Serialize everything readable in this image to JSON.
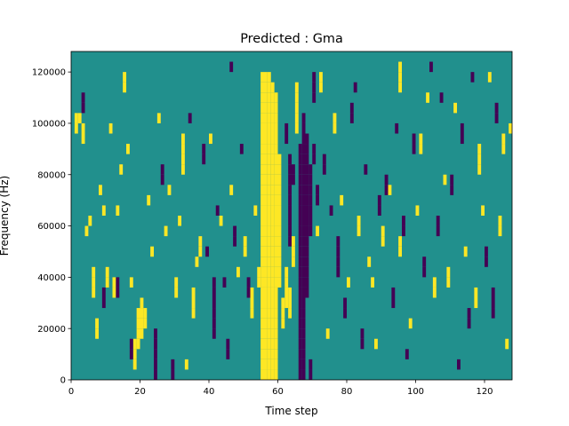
{
  "chart_data": {
    "type": "heatmap",
    "title": "Predicted : Gma",
    "xlabel": "Time step",
    "ylabel": "Frequency (Hz)",
    "xlim": [
      0,
      128
    ],
    "ylim": [
      0,
      128000
    ],
    "x_ticks": [
      {
        "value": 0,
        "label": "0"
      },
      {
        "value": 20,
        "label": "20"
      },
      {
        "value": 40,
        "label": "40"
      },
      {
        "value": 60,
        "label": "60"
      },
      {
        "value": 80,
        "label": "80"
      },
      {
        "value": 100,
        "label": "100"
      },
      {
        "value": 120,
        "label": "120"
      }
    ],
    "y_ticks": [
      {
        "value": 0,
        "label": "0"
      },
      {
        "value": 20000,
        "label": "20000"
      },
      {
        "value": 40000,
        "label": "40000"
      },
      {
        "value": 60000,
        "label": "60000"
      },
      {
        "value": 80000,
        "label": "80000"
      },
      {
        "value": 100000,
        "label": "100000"
      },
      {
        "value": 120000,
        "label": "120000"
      }
    ],
    "frequency_bins": 32,
    "bin_width_hz": 4000,
    "value_levels": [
      -1,
      0,
      1
    ],
    "colormap": {
      "-1": "#440154",
      "0": "#21908d",
      "1": "#fde725"
    },
    "background_value": 0,
    "cells": [
      {
        "t": 55,
        "f": [
          0,
          1,
          2,
          3,
          4,
          5,
          6,
          7,
          8,
          9,
          10,
          11,
          12,
          13,
          14,
          15,
          16,
          17,
          18,
          19,
          20,
          21,
          22,
          23,
          24,
          25,
          26,
          27,
          28,
          29
        ],
        "v": 1
      },
      {
        "t": 56,
        "f": [
          0,
          1,
          2,
          3,
          4,
          5,
          6,
          7,
          8,
          9,
          10,
          11,
          12,
          13,
          14,
          15,
          16,
          17,
          18,
          19,
          20,
          21,
          22,
          23,
          24,
          25,
          26,
          27,
          28,
          29
        ],
        "v": 1
      },
      {
        "t": 57,
        "f": [
          0,
          1,
          2,
          3,
          4,
          5,
          6,
          7,
          8,
          9,
          10,
          11,
          12,
          13,
          14,
          15,
          16,
          17,
          18,
          19,
          20,
          21,
          22,
          23,
          24,
          25,
          26,
          27,
          28,
          29
        ],
        "v": 1
      },
      {
        "t": 58,
        "f": [
          0,
          1,
          2,
          3,
          4,
          5,
          6,
          7,
          8,
          9,
          10,
          11,
          12,
          13,
          14,
          15,
          16,
          17,
          18,
          19,
          20,
          21,
          22,
          23,
          24,
          25,
          26,
          27,
          28
        ],
        "v": 1
      },
      {
        "t": 59,
        "f": [
          0,
          1,
          2,
          3,
          4,
          5,
          6,
          7,
          8,
          9,
          10,
          11,
          12,
          13,
          14,
          15,
          16,
          17,
          18,
          19,
          20,
          21,
          22,
          23,
          24,
          25
        ],
        "v": 1
      },
      {
        "t": 60,
        "f": [
          9,
          10,
          11,
          12,
          13,
          14,
          15,
          16,
          17,
          18,
          19,
          20,
          21
        ],
        "v": 1
      },
      {
        "t": 61,
        "f": [
          5,
          6,
          7
        ],
        "v": 1
      },
      {
        "t": 62,
        "f": [
          7,
          8,
          9,
          10
        ],
        "v": 1
      },
      {
        "t": 63,
        "f": [
          6,
          7,
          8
        ],
        "v": 1
      },
      {
        "t": 64,
        "f": [
          11,
          12,
          13
        ],
        "v": 1
      },
      {
        "t": 65,
        "f": [
          24,
          25,
          26,
          27,
          28
        ],
        "v": 1
      },
      {
        "t": 66,
        "f": [
          0,
          1,
          2,
          3,
          4,
          5,
          6,
          7,
          8,
          9,
          10,
          11,
          12,
          13,
          14,
          15,
          16,
          17,
          18,
          19,
          20,
          21,
          22
        ],
        "v": -1
      },
      {
        "t": 67,
        "f": [
          0,
          1,
          2,
          3,
          4,
          5,
          6,
          7,
          8,
          9,
          10,
          11,
          12,
          13,
          14,
          15,
          16,
          17,
          18,
          19,
          20,
          21,
          22,
          23,
          24,
          25
        ],
        "v": -1
      },
      {
        "t": 68,
        "f": [
          8,
          9,
          10,
          11,
          12,
          13,
          14,
          15,
          16,
          17,
          18,
          19,
          20,
          21,
          22,
          23
        ],
        "v": -1
      },
      {
        "t": 69,
        "f": [
          14,
          15,
          16,
          17,
          18,
          19,
          20
        ],
        "v": -1
      },
      {
        "t": 63,
        "f": [
          13,
          14,
          15,
          16,
          17,
          18,
          19,
          20,
          21
        ],
        "v": -1
      },
      {
        "t": 64,
        "f": [
          19,
          20
        ],
        "v": -1
      },
      {
        "t": 62,
        "f": [
          23,
          24
        ],
        "v": -1
      },
      {
        "t": 70,
        "f": [
          27,
          28,
          29
        ],
        "v": -1
      },
      {
        "t": 6,
        "f": [
          8,
          9,
          10
        ],
        "v": 1
      },
      {
        "t": 7,
        "f": [
          4,
          5
        ],
        "v": 1
      },
      {
        "t": 10,
        "f": [
          9,
          10
        ],
        "v": 1
      },
      {
        "t": 12,
        "f": [
          8,
          9
        ],
        "v": 1
      },
      {
        "t": 18,
        "f": [
          1,
          2,
          3
        ],
        "v": 1
      },
      {
        "t": 19,
        "f": [
          3,
          4,
          5,
          6
        ],
        "v": 1
      },
      {
        "t": 20,
        "f": [
          4,
          5,
          6,
          7
        ],
        "v": 1
      },
      {
        "t": 21,
        "f": [
          5,
          6
        ],
        "v": 1
      },
      {
        "t": 30,
        "f": [
          8,
          9
        ],
        "v": 1
      },
      {
        "t": 32,
        "f": [
          20,
          21,
          22,
          23
        ],
        "v": 1
      },
      {
        "t": 35,
        "f": [
          6,
          7,
          8
        ],
        "v": 1
      },
      {
        "t": 37,
        "f": [
          12,
          13
        ],
        "v": 1
      },
      {
        "t": 50,
        "f": [
          12,
          13
        ],
        "v": 1
      },
      {
        "t": 52,
        "f": [
          6,
          7,
          8
        ],
        "v": 1
      },
      {
        "t": 54,
        "f": [
          9,
          10
        ],
        "v": 1
      },
      {
        "t": 72,
        "f": [
          28,
          29
        ],
        "v": 1
      },
      {
        "t": 76,
        "f": [
          24,
          25
        ],
        "v": 1
      },
      {
        "t": 83,
        "f": [
          14,
          15
        ],
        "v": 1
      },
      {
        "t": 90,
        "f": [
          13,
          14
        ],
        "v": 1
      },
      {
        "t": 95,
        "f": [
          12,
          13
        ],
        "v": 1
      },
      {
        "t": 105,
        "f": [
          8,
          9
        ],
        "v": 1
      },
      {
        "t": 109,
        "f": [
          9,
          10
        ],
        "v": 1
      },
      {
        "t": 117,
        "f": [
          7,
          8
        ],
        "v": 1
      },
      {
        "t": 118,
        "f": [
          20,
          21,
          22
        ],
        "v": 1
      },
      {
        "t": 124,
        "f": [
          14,
          15
        ],
        "v": 1
      },
      {
        "t": 125,
        "f": [
          22,
          23
        ],
        "v": 1
      },
      {
        "t": 95,
        "f": [
          28,
          29,
          30
        ],
        "v": 1
      },
      {
        "t": 101,
        "f": [
          22,
          23
        ],
        "v": 1
      },
      {
        "t": 15,
        "f": [
          28,
          29
        ],
        "v": 1
      },
      {
        "t": 2,
        "f": [
          25
        ],
        "v": 1
      },
      {
        "t": 3,
        "f": [
          23,
          24
        ],
        "v": 1
      },
      {
        "t": 4,
        "f": [
          14
        ],
        "v": 1
      },
      {
        "t": 5,
        "f": [
          15
        ],
        "v": 1
      },
      {
        "t": 8,
        "f": [
          18
        ],
        "v": 1
      },
      {
        "t": 9,
        "f": [
          16
        ],
        "v": 1
      },
      {
        "t": 11,
        "f": [
          24
        ],
        "v": 1
      },
      {
        "t": 13,
        "f": [
          16
        ],
        "v": 1
      },
      {
        "t": 14,
        "f": [
          20
        ],
        "v": 1
      },
      {
        "t": 16,
        "f": [
          22
        ],
        "v": 1
      },
      {
        "t": 17,
        "f": [
          9
        ],
        "v": 1
      },
      {
        "t": 22,
        "f": [
          17
        ],
        "v": 1
      },
      {
        "t": 23,
        "f": [
          12
        ],
        "v": 1
      },
      {
        "t": 25,
        "f": [
          25
        ],
        "v": 1
      },
      {
        "t": 27,
        "f": [
          14
        ],
        "v": 1
      },
      {
        "t": 28,
        "f": [
          18
        ],
        "v": 1
      },
      {
        "t": 31,
        "f": [
          15
        ],
        "v": 1
      },
      {
        "t": 33,
        "f": [
          1
        ],
        "v": 1
      },
      {
        "t": 36,
        "f": [
          11
        ],
        "v": 1
      },
      {
        "t": 40,
        "f": [
          23
        ],
        "v": 1
      },
      {
        "t": 43,
        "f": [
          15
        ],
        "v": 1
      },
      {
        "t": 46,
        "f": [
          18
        ],
        "v": 1
      },
      {
        "t": 48,
        "f": [
          10
        ],
        "v": 1
      },
      {
        "t": 53,
        "f": [
          16
        ],
        "v": 1
      },
      {
        "t": 71,
        "f": [
          14
        ],
        "v": 1
      },
      {
        "t": 74,
        "f": [
          4
        ],
        "v": 1
      },
      {
        "t": 78,
        "f": [
          17
        ],
        "v": 1
      },
      {
        "t": 80,
        "f": [
          9
        ],
        "v": 1
      },
      {
        "t": 86,
        "f": [
          11
        ],
        "v": 1
      },
      {
        "t": 88,
        "f": [
          3
        ],
        "v": 1
      },
      {
        "t": 92,
        "f": [
          18
        ],
        "v": 1
      },
      {
        "t": 98,
        "f": [
          5
        ],
        "v": 1
      },
      {
        "t": 100,
        "f": [
          16
        ],
        "v": 1
      },
      {
        "t": 103,
        "f": [
          27
        ],
        "v": 1
      },
      {
        "t": 108,
        "f": [
          19
        ],
        "v": 1
      },
      {
        "t": 111,
        "f": [
          26
        ],
        "v": 1
      },
      {
        "t": 114,
        "f": [
          12
        ],
        "v": 1
      },
      {
        "t": 119,
        "f": [
          16
        ],
        "v": 1
      },
      {
        "t": 121,
        "f": [
          29
        ],
        "v": 1
      },
      {
        "t": 126,
        "f": [
          3
        ],
        "v": 1
      },
      {
        "t": 127,
        "f": [
          24
        ],
        "v": 1
      },
      {
        "t": 1,
        "f": [
          24,
          25
        ],
        "v": 1
      },
      {
        "t": 87,
        "f": [
          9
        ],
        "v": 1
      },
      {
        "t": 59,
        "f": [
          26,
          27
        ],
        "v": 1
      },
      {
        "t": 3,
        "f": [
          26,
          27
        ],
        "v": -1
      },
      {
        "t": 9,
        "f": [
          7,
          8
        ],
        "v": -1
      },
      {
        "t": 13,
        "f": [
          8,
          9
        ],
        "v": -1
      },
      {
        "t": 17,
        "f": [
          2,
          3
        ],
        "v": -1
      },
      {
        "t": 24,
        "f": [
          0,
          1,
          2,
          3,
          4
        ],
        "v": -1
      },
      {
        "t": 26,
        "f": [
          19,
          20
        ],
        "v": -1
      },
      {
        "t": 29,
        "f": [
          0,
          1
        ],
        "v": -1
      },
      {
        "t": 38,
        "f": [
          21,
          22
        ],
        "v": -1
      },
      {
        "t": 41,
        "f": [
          4,
          5,
          6,
          7,
          8,
          9
        ],
        "v": -1
      },
      {
        "t": 45,
        "f": [
          2,
          3
        ],
        "v": -1
      },
      {
        "t": 47,
        "f": [
          13,
          14
        ],
        "v": -1
      },
      {
        "t": 51,
        "f": [
          8,
          9
        ],
        "v": -1
      },
      {
        "t": 73,
        "f": [
          20,
          21
        ],
        "v": -1
      },
      {
        "t": 77,
        "f": [
          10,
          11,
          12,
          13
        ],
        "v": -1
      },
      {
        "t": 79,
        "f": [
          6,
          7
        ],
        "v": -1
      },
      {
        "t": 81,
        "f": [
          25,
          26
        ],
        "v": -1
      },
      {
        "t": 84,
        "f": [
          3,
          4
        ],
        "v": -1
      },
      {
        "t": 89,
        "f": [
          16,
          17
        ],
        "v": -1
      },
      {
        "t": 91,
        "f": [
          18,
          19
        ],
        "v": -1
      },
      {
        "t": 93,
        "f": [
          7,
          8
        ],
        "v": -1
      },
      {
        "t": 96,
        "f": [
          14,
          15
        ],
        "v": -1
      },
      {
        "t": 99,
        "f": [
          22,
          23
        ],
        "v": -1
      },
      {
        "t": 102,
        "f": [
          10,
          11
        ],
        "v": -1
      },
      {
        "t": 106,
        "f": [
          14,
          15
        ],
        "v": -1
      },
      {
        "t": 110,
        "f": [
          18,
          19
        ],
        "v": -1
      },
      {
        "t": 113,
        "f": [
          23,
          24
        ],
        "v": -1
      },
      {
        "t": 115,
        "f": [
          5,
          6
        ],
        "v": -1
      },
      {
        "t": 120,
        "f": [
          11,
          12
        ],
        "v": -1
      },
      {
        "t": 122,
        "f": [
          6,
          7,
          8
        ],
        "v": -1
      },
      {
        "t": 123,
        "f": [
          25,
          26
        ],
        "v": -1
      },
      {
        "t": 34,
        "f": [
          25
        ],
        "v": -1
      },
      {
        "t": 44,
        "f": [
          9
        ],
        "v": -1
      },
      {
        "t": 49,
        "f": [
          22
        ],
        "v": -1
      },
      {
        "t": 75,
        "f": [
          16
        ],
        "v": -1
      },
      {
        "t": 82,
        "f": [
          28
        ],
        "v": -1
      },
      {
        "t": 85,
        "f": [
          20
        ],
        "v": -1
      },
      {
        "t": 94,
        "f": [
          24
        ],
        "v": -1
      },
      {
        "t": 97,
        "f": [
          2
        ],
        "v": -1
      },
      {
        "t": 104,
        "f": [
          30
        ],
        "v": -1
      },
      {
        "t": 107,
        "f": [
          27
        ],
        "v": -1
      },
      {
        "t": 112,
        "f": [
          1
        ],
        "v": -1
      },
      {
        "t": 116,
        "f": [
          29
        ],
        "v": -1
      },
      {
        "t": 39,
        "f": [
          12
        ],
        "v": -1
      },
      {
        "t": 42,
        "f": [
          16
        ],
        "v": -1
      },
      {
        "t": 46,
        "f": [
          30
        ],
        "v": -1
      },
      {
        "t": 69,
        "f": [
          0,
          1
        ],
        "v": -1
      },
      {
        "t": 70,
        "f": [
          21,
          22
        ],
        "v": -1
      },
      {
        "t": 71,
        "f": [
          17,
          18
        ],
        "v": -1
      }
    ]
  }
}
